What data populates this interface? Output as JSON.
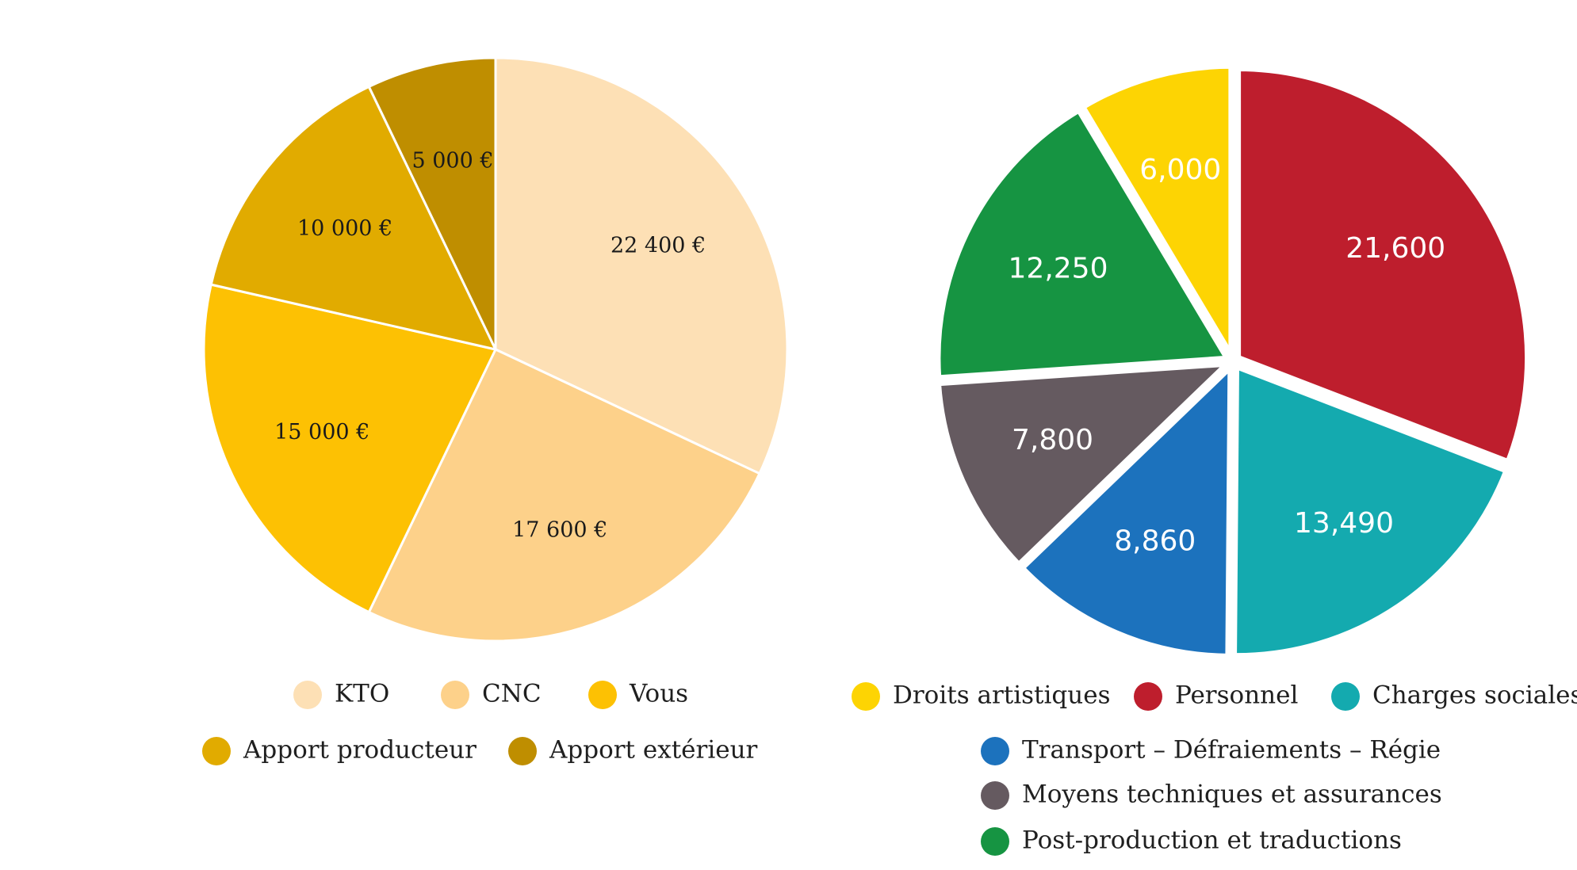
{
  "chart_data": [
    {
      "type": "pie",
      "title": "",
      "slices": [
        {
          "label": "KTO",
          "value": 22400,
          "display": "22 400 €",
          "color": "#FDE0B5"
        },
        {
          "label": "CNC",
          "value": 17600,
          "display": "17 600 €",
          "color": "#FDD18A"
        },
        {
          "label": "Vous",
          "value": 15000,
          "display": "15 000 €",
          "color": "#FDC103"
        },
        {
          "label": "Apport producteur",
          "value": 10000,
          "display": "10 000 €",
          "color": "#E1AB00"
        },
        {
          "label": "Apport extérieur",
          "value": 5000,
          "display": "5 000 €",
          "color": "#BF8E00"
        }
      ],
      "legend_rows": [
        [
          "KTO",
          "CNC",
          "Vous"
        ],
        [
          "Apport producteur",
          "Apport extérieur"
        ]
      ],
      "legend_position": "bottom"
    },
    {
      "type": "pie",
      "title": "",
      "slices": [
        {
          "label": "Personnel",
          "value": 21600,
          "display": "21,600",
          "color": "#BE1E2D"
        },
        {
          "label": "Charges sociales",
          "value": 13490,
          "display": "13,490",
          "color": "#14AAAF"
        },
        {
          "label": "Transport – Défraiements – Régie",
          "value": 8860,
          "display": "8,860",
          "color": "#1C72BD"
        },
        {
          "label": "Moyens techniques et assurances",
          "value": 7800,
          "display": "7,800",
          "color": "#655A60"
        },
        {
          "label": "Post-production et traductions",
          "value": 12250,
          "display": "12,250",
          "color": "#169442"
        },
        {
          "label": "Droits artistiques",
          "value": 6000,
          "display": "6,000",
          "color": "#FDD403"
        }
      ],
      "legend_rows": [
        [
          "Droits artistiques",
          "Personnel",
          "Charges sociales"
        ],
        [
          "Transport – Défraiements – Régie"
        ],
        [
          "Moyens techniques et assurances"
        ],
        [
          "Post-production et traductions"
        ]
      ],
      "legend_position": "bottom"
    }
  ]
}
